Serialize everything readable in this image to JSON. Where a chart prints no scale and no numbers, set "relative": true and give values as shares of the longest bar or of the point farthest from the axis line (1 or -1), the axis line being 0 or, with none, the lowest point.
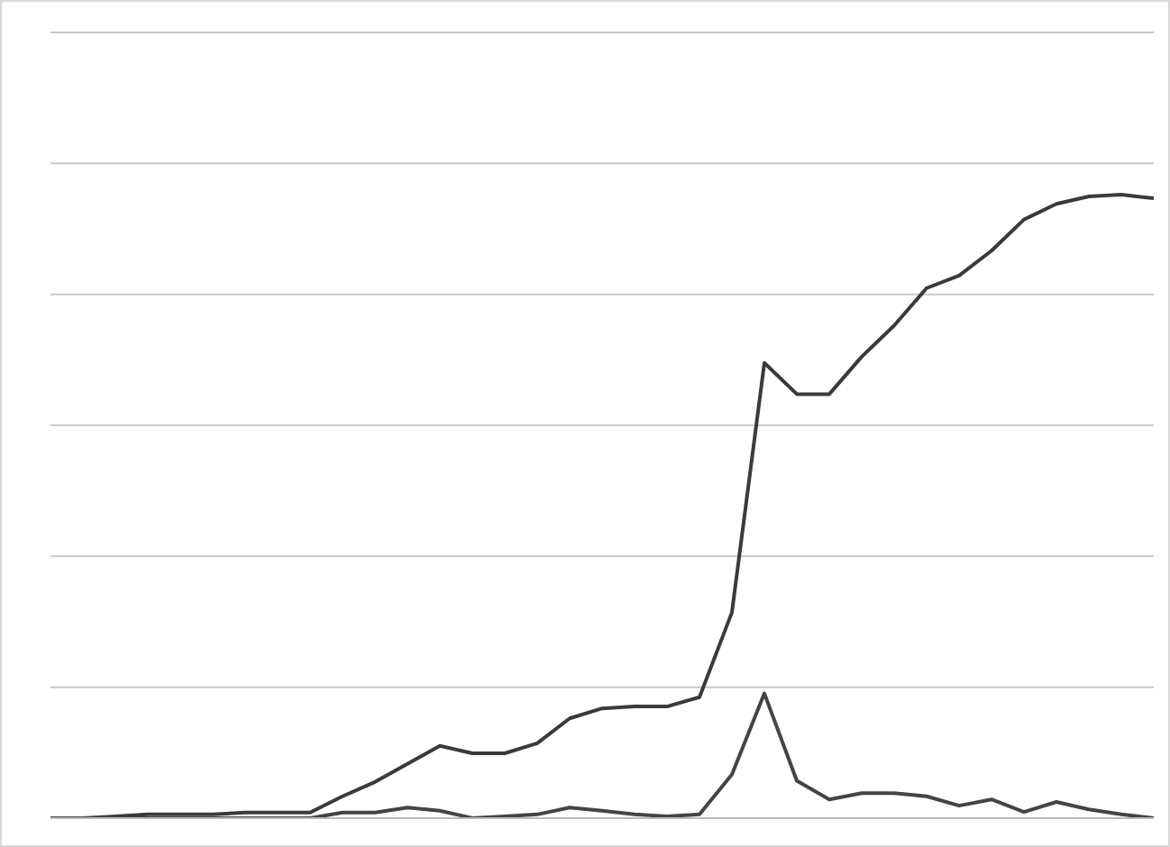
{
  "chart_data": {
    "type": "line",
    "relative": true,
    "grid": "y",
    "marker": "none",
    "line_style": "solid",
    "categories": [
      null,
      null,
      null,
      null,
      null,
      null,
      null,
      null,
      null,
      null,
      null,
      null,
      null,
      null,
      null,
      null,
      null,
      null,
      null,
      null,
      null,
      null,
      null,
      null,
      null,
      null,
      null,
      null,
      null,
      null,
      null,
      null,
      null,
      null,
      null
    ],
    "series": [
      {
        "color": "#3a3a3a",
        "values": [
          0,
          0,
          0.003,
          0.006,
          0.006,
          0.006,
          0.009,
          0.009,
          0.009,
          0.035,
          0.058,
          0.087,
          0.116,
          0.104,
          0.104,
          0.12,
          0.16,
          0.176,
          0.179,
          0.179,
          0.194,
          0.33,
          0.73,
          0.68,
          0.68,
          0.74,
          0.79,
          0.85,
          0.87,
          0.91,
          0.96,
          0.985,
          0.997,
          1,
          0.994
        ]
      },
      {
        "color": "#444444",
        "values": [
          0,
          0,
          0,
          0,
          0,
          0,
          0,
          0,
          0,
          0.009,
          0.009,
          0.017,
          0.012,
          0,
          0.003,
          0.006,
          0.017,
          0.012,
          0.006,
          0.003,
          0.006,
          0.07,
          0.2,
          0.06,
          0.03,
          0.04,
          0.04,
          0.035,
          0.02,
          0.03,
          0.01,
          0.026,
          0.014,
          0.006,
          0
        ]
      }
    ]
  }
}
